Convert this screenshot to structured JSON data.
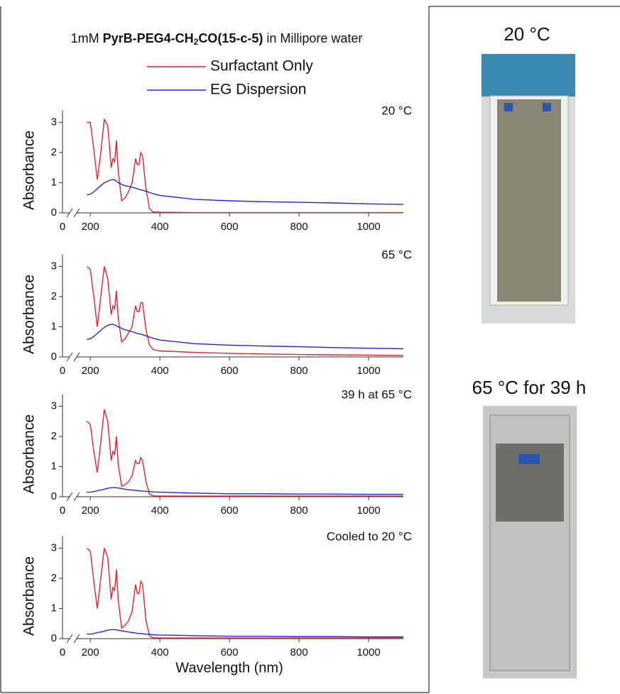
{
  "figure_title": {
    "prefix": "1mM ",
    "bold_before_sub": "PyrB-PEG4-CH",
    "subscript": "2",
    "bold_after_sub": "CO(15-c-5)",
    "suffix": " in Millipore water"
  },
  "chart_data": [
    {
      "type": "line",
      "annotation": "20 °C",
      "ylabel": "Absorbance",
      "x": [
        190,
        200,
        210,
        220,
        230,
        240,
        250,
        260,
        265,
        270,
        275,
        280,
        290,
        300,
        310,
        320,
        330,
        335,
        340,
        345,
        350,
        360,
        370,
        380,
        400,
        500,
        600,
        700,
        800,
        900,
        1000,
        1100
      ],
      "xlim": [
        120,
        1100
      ],
      "xticks": [
        200,
        400,
        600,
        800,
        1000
      ],
      "xticks_before_break": [
        0
      ],
      "ylim": [
        0,
        3.4
      ],
      "yticks": [
        0,
        1,
        2,
        3
      ],
      "series": [
        {
          "name": "Surfactant Only",
          "color": "#e8202a",
          "values": [
            3.0,
            3.0,
            2.1,
            1.1,
            2.0,
            3.1,
            2.9,
            1.5,
            1.8,
            1.7,
            2.4,
            1.4,
            0.4,
            0.5,
            0.7,
            1.0,
            1.8,
            1.6,
            1.6,
            2.0,
            1.9,
            0.8,
            0.15,
            0.03,
            0.02,
            0.01,
            0.01,
            0.01,
            0.01,
            0.01,
            0.01,
            0.01
          ]
        },
        {
          "name": "EG Dispersion",
          "color": "#2424e0",
          "values": [
            0.6,
            0.62,
            0.7,
            0.8,
            0.9,
            1.0,
            1.05,
            1.1,
            1.1,
            1.1,
            1.05,
            1.0,
            0.95,
            0.9,
            0.88,
            0.85,
            0.82,
            0.8,
            0.78,
            0.76,
            0.75,
            0.72,
            0.68,
            0.64,
            0.58,
            0.45,
            0.4,
            0.37,
            0.35,
            0.33,
            0.3,
            0.28
          ]
        }
      ]
    },
    {
      "type": "line",
      "annotation": "65 °C",
      "ylabel": "Absorbance",
      "x": [
        190,
        200,
        210,
        220,
        230,
        240,
        250,
        260,
        265,
        270,
        275,
        280,
        290,
        300,
        310,
        320,
        330,
        335,
        340,
        345,
        350,
        360,
        370,
        380,
        400,
        500,
        600,
        700,
        800,
        900,
        1000,
        1100
      ],
      "xlim": [
        120,
        1100
      ],
      "xticks": [
        200,
        400,
        600,
        800,
        1000
      ],
      "xticks_before_break": [
        0
      ],
      "ylim": [
        0,
        3.4
      ],
      "yticks": [
        0,
        1,
        2,
        3
      ],
      "series": [
        {
          "name": "Surfactant Only",
          "color": "#e8202a",
          "values": [
            3.0,
            2.9,
            2.0,
            1.0,
            2.0,
            3.0,
            2.6,
            1.4,
            1.7,
            1.6,
            2.2,
            1.3,
            0.5,
            0.6,
            0.8,
            1.0,
            1.7,
            1.5,
            1.5,
            1.8,
            1.8,
            0.9,
            0.4,
            0.25,
            0.2,
            0.15,
            0.12,
            0.1,
            0.08,
            0.07,
            0.06,
            0.05
          ]
        },
        {
          "name": "EG Dispersion",
          "color": "#2424e0",
          "values": [
            0.58,
            0.6,
            0.68,
            0.78,
            0.88,
            0.98,
            1.05,
            1.08,
            1.08,
            1.06,
            1.03,
            1.0,
            0.95,
            0.9,
            0.87,
            0.84,
            0.8,
            0.78,
            0.77,
            0.75,
            0.74,
            0.7,
            0.66,
            0.62,
            0.56,
            0.44,
            0.39,
            0.36,
            0.34,
            0.31,
            0.29,
            0.27
          ]
        }
      ]
    },
    {
      "type": "line",
      "annotation": "39 h at 65 °C",
      "ylabel": "Absorbance",
      "x": [
        190,
        200,
        210,
        220,
        230,
        240,
        250,
        260,
        265,
        270,
        275,
        280,
        290,
        300,
        310,
        320,
        330,
        335,
        340,
        345,
        350,
        360,
        370,
        380,
        400,
        500,
        600,
        700,
        800,
        900,
        1000,
        1100
      ],
      "xlim": [
        120,
        1100
      ],
      "xticks": [
        200,
        400,
        600,
        800,
        1000
      ],
      "xticks_before_break": [
        0
      ],
      "ylim": [
        0,
        3.4
      ],
      "yticks": [
        0,
        1,
        2,
        3
      ],
      "series": [
        {
          "name": "Surfactant Only",
          "color": "#e8202a",
          "values": [
            2.5,
            2.4,
            1.5,
            0.8,
            1.8,
            2.9,
            2.5,
            1.2,
            1.5,
            1.4,
            2.0,
            1.1,
            0.35,
            0.4,
            0.5,
            0.7,
            1.2,
            1.1,
            1.1,
            1.3,
            1.2,
            0.5,
            0.1,
            0.03,
            0.02,
            0.02,
            0.02,
            0.02,
            0.02,
            0.02,
            0.02,
            0.02
          ]
        },
        {
          "name": "EG Dispersion",
          "color": "#2424e0",
          "values": [
            0.15,
            0.15,
            0.17,
            0.2,
            0.22,
            0.25,
            0.28,
            0.3,
            0.3,
            0.3,
            0.3,
            0.29,
            0.27,
            0.25,
            0.23,
            0.22,
            0.21,
            0.2,
            0.2,
            0.19,
            0.19,
            0.18,
            0.17,
            0.16,
            0.15,
            0.12,
            0.1,
            0.1,
            0.09,
            0.09,
            0.08,
            0.08
          ]
        }
      ]
    },
    {
      "type": "line",
      "annotation": "Cooled to 20 °C",
      "ylabel": "Absorbance",
      "xlabel": "Wavelength (nm)",
      "x": [
        190,
        200,
        210,
        220,
        230,
        240,
        250,
        260,
        265,
        270,
        275,
        280,
        290,
        300,
        310,
        320,
        330,
        335,
        340,
        345,
        350,
        360,
        370,
        380,
        400,
        500,
        600,
        700,
        800,
        900,
        1000,
        1100
      ],
      "xlim": [
        120,
        1100
      ],
      "xticks": [
        200,
        400,
        600,
        800,
        1000
      ],
      "xticks_before_break": [
        0
      ],
      "ylim": [
        0,
        3.4
      ],
      "yticks": [
        0,
        1,
        2,
        3
      ],
      "series": [
        {
          "name": "Surfactant Only",
          "color": "#e8202a",
          "values": [
            3.0,
            2.9,
            1.9,
            1.0,
            2.0,
            3.0,
            2.7,
            1.3,
            1.7,
            1.6,
            2.3,
            1.3,
            0.35,
            0.45,
            0.6,
            0.9,
            1.8,
            1.5,
            1.5,
            1.9,
            1.8,
            0.6,
            0.1,
            0.03,
            0.02,
            0.02,
            0.02,
            0.02,
            0.02,
            0.02,
            0.02,
            0.02
          ]
        },
        {
          "name": "EG Dispersion",
          "color": "#2424e0",
          "values": [
            0.15,
            0.15,
            0.17,
            0.2,
            0.22,
            0.25,
            0.28,
            0.3,
            0.3,
            0.3,
            0.29,
            0.28,
            0.26,
            0.24,
            0.22,
            0.2,
            0.19,
            0.18,
            0.17,
            0.17,
            0.16,
            0.15,
            0.14,
            0.13,
            0.12,
            0.1,
            0.08,
            0.08,
            0.07,
            0.07,
            0.06,
            0.06
          ]
        }
      ]
    }
  ],
  "photos": [
    {
      "caption": "20 °C"
    },
    {
      "caption": "65 °C for 39 h"
    }
  ]
}
